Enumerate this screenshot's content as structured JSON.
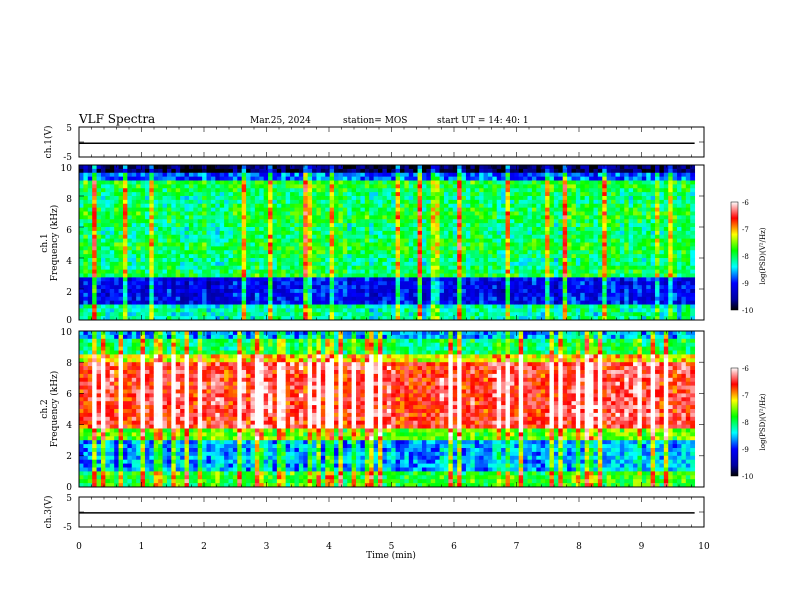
{
  "header": {
    "title": "VLF Spectra",
    "date": "Mar.25, 2024",
    "station": "station= MOS",
    "start_ut": "start  UT =   14: 40: 1"
  },
  "chart_data": [
    {
      "type": "line",
      "name": "ch1-waveform",
      "ylabel": "ch.1(V)",
      "ylim": [
        -5,
        5
      ],
      "yticks": [
        "5",
        "-5"
      ],
      "xlim": [
        0,
        10
      ],
      "baseline": -0.4
    },
    {
      "type": "heatmap",
      "name": "ch1-spectrogram",
      "ylabel_line1": "ch.1",
      "ylabel_line2": "Frequency (kHz)",
      "ylim": [
        0,
        10
      ],
      "yticks": [
        "0",
        "2",
        "4",
        "6",
        "8",
        "10"
      ],
      "xlim": [
        0,
        9.85
      ],
      "colorbar": {
        "label": "log(PSD)(V²/Hz)",
        "ticks": [
          "-6",
          "-7",
          "-8",
          "-9",
          "-10"
        ],
        "range": [
          -10,
          -6
        ]
      }
    },
    {
      "type": "heatmap",
      "name": "ch2-spectrogram",
      "ylabel_line1": "ch.2",
      "ylabel_line2": "Frequency (kHz)",
      "ylim": [
        0,
        10
      ],
      "yticks": [
        "0",
        "2",
        "4",
        "6",
        "8",
        "10"
      ],
      "xlim": [
        0,
        9.85
      ],
      "colorbar": {
        "label": "log(PSD)(V²/Hz)",
        "ticks": [
          "-6",
          "-7",
          "-8",
          "-9",
          "-10"
        ],
        "range": [
          -10,
          -6
        ]
      }
    },
    {
      "type": "line",
      "name": "ch3-waveform",
      "ylabel": "ch.3(V)",
      "ylim": [
        -5,
        5
      ],
      "yticks": [
        "5",
        "-5"
      ],
      "xlim": [
        0,
        10
      ],
      "baseline": -0.3
    }
  ],
  "xaxis": {
    "label": "Time  (min)",
    "ticks": [
      "0",
      "1",
      "2",
      "3",
      "4",
      "5",
      "6",
      "7",
      "8",
      "9",
      "10"
    ],
    "range": [
      0,
      10
    ]
  },
  "colors": {
    "axis": "#000000",
    "colormap": [
      "#000000",
      "#00008b",
      "#0000ff",
      "#00ffff",
      "#00ff00",
      "#ffff00",
      "#ff0000",
      "#ffffff"
    ]
  }
}
